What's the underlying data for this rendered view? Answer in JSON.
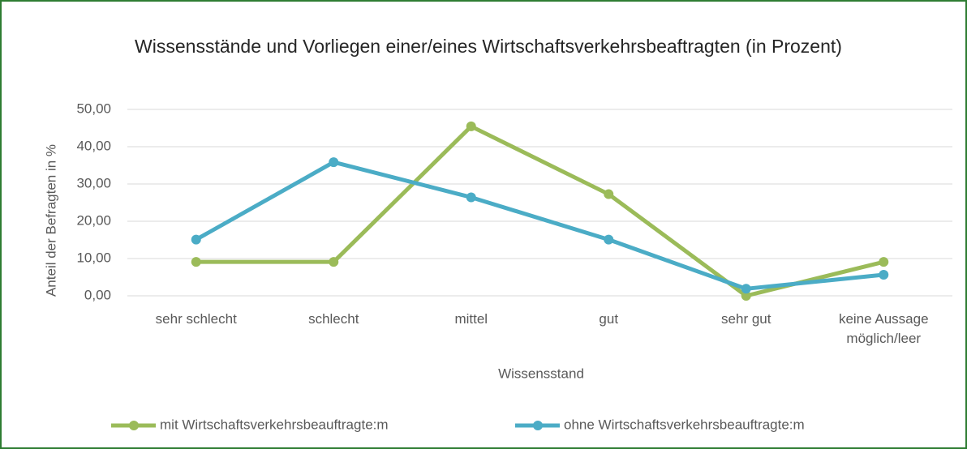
{
  "chart_data": {
    "type": "line",
    "title": "Wissensstände und Vorliegen einer/eines Wirtschaftsverkehrsbeaftragten (in Prozent)",
    "x_label": "Wissensstand",
    "y_label": "Anteil der Befragten in %",
    "categories": [
      "sehr schlecht",
      "schlecht",
      "mittel",
      "gut",
      "sehr gut",
      "keine Aussage möglich/leer"
    ],
    "series": [
      {
        "name": "mit Wirtschaftsverkehrsbeauftragte:m",
        "color": "#9bbb59",
        "values": [
          9.09,
          9.09,
          45.45,
          27.27,
          0,
          9.09
        ]
      },
      {
        "name": "ohne Wirtschaftsverkehrsbeauftragte:m",
        "color": "#4bacc6",
        "values": [
          15.09,
          35.85,
          26.42,
          15.09,
          1.89,
          5.66
        ]
      }
    ],
    "ylim": [
      0,
      50
    ],
    "yticks": [
      {
        "value": 0,
        "label": "0,00"
      },
      {
        "value": 10,
        "label": "10,00"
      },
      {
        "value": 20,
        "label": "20,00"
      },
      {
        "value": 30,
        "label": "30,00"
      },
      {
        "value": 40,
        "label": "40,00"
      },
      {
        "value": 50,
        "label": "50,00"
      }
    ],
    "grid": true,
    "legend": "bottom"
  }
}
